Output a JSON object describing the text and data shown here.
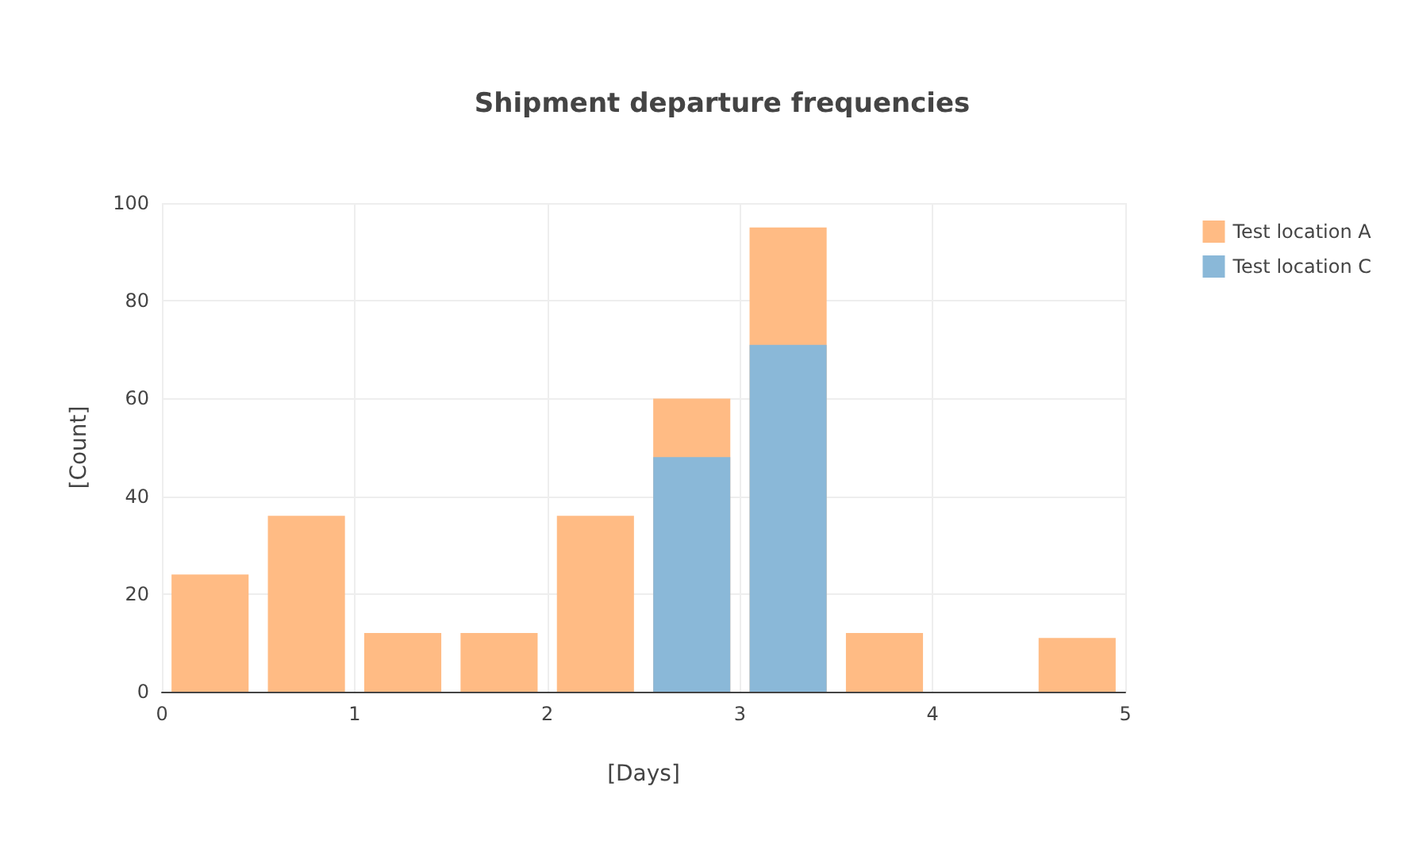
{
  "chart_data": {
    "type": "histogram",
    "title": "Shipment departure frequencies",
    "xlabel": "[Days]",
    "ylabel": "[Count]",
    "bins": [
      0,
      0.5,
      1,
      1.5,
      2,
      2.5,
      3,
      3.5,
      4,
      4.5,
      5
    ],
    "series": [
      {
        "name": "Test location A",
        "color": "#ffbb84",
        "values": [
          24,
          36,
          12,
          12,
          36,
          60,
          95,
          12,
          0,
          11
        ]
      },
      {
        "name": "Test location C",
        "color": "#8ab8d8",
        "values": [
          0,
          0,
          0,
          0,
          0,
          48,
          71,
          0,
          0,
          0
        ]
      }
    ],
    "xlim": [
      0,
      5
    ],
    "xticks": [
      0,
      1,
      2,
      3,
      4,
      5
    ],
    "ylim": [
      0,
      100
    ],
    "yticks": [
      0,
      20,
      40,
      60,
      80,
      100
    ],
    "grid": true,
    "legend": "top right"
  }
}
